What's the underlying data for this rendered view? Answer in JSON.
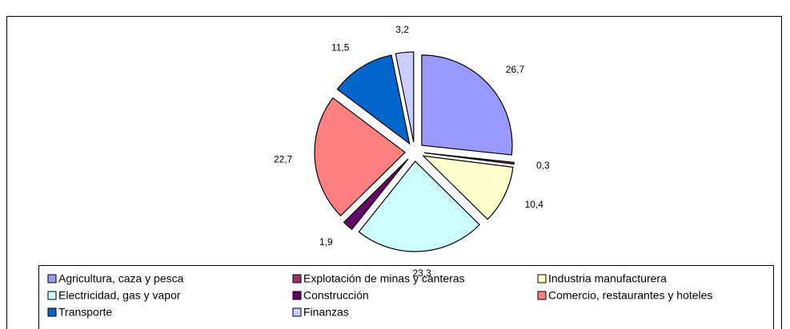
{
  "chart_data": {
    "type": "pie",
    "categories": [
      "Agricultura, caza y pesca",
      "Explotación de minas y canteras",
      "Industria manufacturera",
      "Electricidad, gas y vapor",
      "Construcción",
      "Comercio, restaurantes y hoteles",
      "Transporte",
      "Finanzas"
    ],
    "values": [
      26.7,
      0.3,
      10.4,
      23.3,
      1.9,
      22.7,
      11.5,
      3.2
    ],
    "value_labels": [
      "26,7",
      "0,3",
      "10,4",
      "23,3",
      "1,9",
      "22,7",
      "11,5",
      "3,2"
    ],
    "colors": [
      "#9999ff",
      "#993366",
      "#ffffcc",
      "#ccffff",
      "#660066",
      "#ff8080",
      "#0066cc",
      "#ccccff"
    ],
    "legend": "bottom"
  }
}
